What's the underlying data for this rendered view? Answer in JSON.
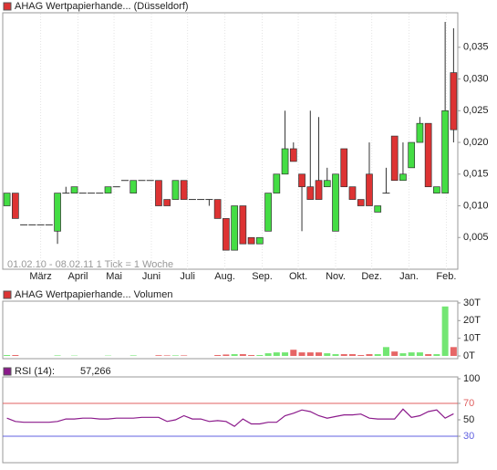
{
  "chart_data": [
    {
      "type": "candlestick",
      "title": "AHAG Wertpapierhande... (Düsseldorf)",
      "subtitle": "01.02.10 - 08.02.11   1 Tick = 1 Woche",
      "x": [
        0,
        1,
        2,
        3,
        4,
        5,
        6,
        7,
        8,
        9,
        10,
        11,
        12,
        13,
        14,
        15,
        16,
        17,
        18,
        19,
        20,
        21,
        22,
        23,
        24,
        25,
        26,
        27,
        28,
        29,
        30,
        31,
        32,
        33,
        34,
        35,
        36,
        37,
        38,
        39,
        40,
        41,
        42,
        43,
        44,
        45,
        46,
        47,
        48,
        49,
        50,
        51,
        52,
        53
      ],
      "xlim": [
        -0.5,
        53.5
      ],
      "xticks": [
        {
          "value": 4,
          "label": "März"
        },
        {
          "value": 8.43,
          "label": "April"
        },
        {
          "value": 12.71,
          "label": "Mai"
        },
        {
          "value": 17.14,
          "label": "Juni"
        },
        {
          "value": 21.43,
          "label": "Juli"
        },
        {
          "value": 25.86,
          "label": "Aug."
        },
        {
          "value": 30.29,
          "label": "Sep."
        },
        {
          "value": 34.57,
          "label": "Okt."
        },
        {
          "value": 39,
          "label": "Nov."
        },
        {
          "value": 43.29,
          "label": "Dez."
        },
        {
          "value": 47.71,
          "label": "Jan."
        },
        {
          "value": 52.14,
          "label": "Feb."
        }
      ],
      "open": [
        0.01,
        0.012,
        0.007,
        0.007,
        0.007,
        0.007,
        0.006,
        0.012,
        0.012,
        0.012,
        0.012,
        0.012,
        0.012,
        0.013,
        0.014,
        0.012,
        0.014,
        0.014,
        0.014,
        0.011,
        0.011,
        0.014,
        0.011,
        0.011,
        0.011,
        0.011,
        0.008,
        0.003,
        0.01,
        0.005,
        0.004,
        0.006,
        0.012,
        0.015,
        0.019,
        0.015,
        0.013,
        0.014,
        0.013,
        0.006,
        0.019,
        0.013,
        0.011,
        0.015,
        0.009,
        0.012,
        0.021,
        0.014,
        0.016,
        0.02,
        0.023,
        0.012,
        0.012,
        0.031
      ],
      "high": [
        0.012,
        0.012,
        0.007,
        0.007,
        0.007,
        0.007,
        0.012,
        0.013,
        0.013,
        0.012,
        0.012,
        0.012,
        0.013,
        0.013,
        0.014,
        0.014,
        0.014,
        0.014,
        0.014,
        0.011,
        0.014,
        0.014,
        0.011,
        0.011,
        0.011,
        0.011,
        0.008,
        0.01,
        0.01,
        0.005,
        0.005,
        0.012,
        0.015,
        0.025,
        0.02,
        0.015,
        0.025,
        0.024,
        0.016,
        0.015,
        0.019,
        0.013,
        0.011,
        0.02,
        0.01,
        0.016,
        0.021,
        0.02,
        0.02,
        0.024,
        0.023,
        0.013,
        0.039,
        0.038
      ],
      "low": [
        0.01,
        0.008,
        0.007,
        0.007,
        0.007,
        0.007,
        0.004,
        0.012,
        0.012,
        0.012,
        0.012,
        0.012,
        0.012,
        0.013,
        0.014,
        0.012,
        0.014,
        0.014,
        0.01,
        0.01,
        0.011,
        0.011,
        0.011,
        0.011,
        0.01,
        0.008,
        0.003,
        0.003,
        0.004,
        0.004,
        0.004,
        0.006,
        0.012,
        0.015,
        0.017,
        0.006,
        0.011,
        0.011,
        0.013,
        0.006,
        0.013,
        0.011,
        0.01,
        0.01,
        0.009,
        0.012,
        0.014,
        0.014,
        0.016,
        0.02,
        0.013,
        0.012,
        0.012,
        0.02
      ],
      "close": [
        0.012,
        0.008,
        0.007,
        0.007,
        0.007,
        0.007,
        0.012,
        0.012,
        0.013,
        0.012,
        0.012,
        0.012,
        0.013,
        0.013,
        0.014,
        0.014,
        0.014,
        0.014,
        0.01,
        0.01,
        0.014,
        0.011,
        0.011,
        0.011,
        0.011,
        0.008,
        0.003,
        0.01,
        0.004,
        0.004,
        0.005,
        0.012,
        0.015,
        0.019,
        0.017,
        0.013,
        0.011,
        0.011,
        0.014,
        0.015,
        0.013,
        0.011,
        0.01,
        0.01,
        0.01,
        0.012,
        0.014,
        0.015,
        0.02,
        0.023,
        0.013,
        0.013,
        0.025,
        0.022
      ],
      "up_color": "#44dd44",
      "down_color": "#dd3333",
      "ylim": [
        0,
        0.0403
      ],
      "yticks": [
        {
          "value": 0.005,
          "label": "0,005"
        },
        {
          "value": 0.01,
          "label": "0,010"
        },
        {
          "value": 0.015,
          "label": "0,015"
        },
        {
          "value": 0.02,
          "label": "0,020"
        },
        {
          "value": 0.025,
          "label": "0,025"
        },
        {
          "value": 0.03,
          "label": "0,030"
        },
        {
          "value": 0.035,
          "label": "0,035"
        }
      ],
      "grid": true
    },
    {
      "type": "bar",
      "title": "AHAG Wertpapierhande... Volumen",
      "values": [
        0.5,
        0.5,
        0,
        0,
        0,
        0,
        0.3,
        0,
        0.2,
        0,
        0,
        0,
        0.2,
        0,
        0,
        0.3,
        0,
        0,
        0.4,
        0.3,
        0.3,
        0.3,
        0,
        0,
        0,
        0.5,
        0.8,
        1,
        1,
        0.5,
        0.5,
        1.5,
        2,
        2,
        3.5,
        2,
        2,
        2,
        1.5,
        1,
        1,
        1,
        0.5,
        1,
        1,
        5,
        2.5,
        1.5,
        2,
        2,
        1,
        1,
        28,
        5
      ],
      "ylim": [
        0,
        31
      ],
      "yticks": [
        {
          "value": 0,
          "label": "0T"
        },
        {
          "value": 10,
          "label": "10T"
        },
        {
          "value": 20,
          "label": "20T"
        },
        {
          "value": 30,
          "label": "30T"
        }
      ]
    },
    {
      "type": "line",
      "title": "RSI (14):",
      "last_label": "57,266",
      "values": [
        52,
        48,
        47,
        47,
        47,
        47,
        48,
        51,
        51,
        52,
        52,
        51,
        51,
        52,
        52,
        52,
        53,
        53,
        53,
        48,
        50,
        55,
        51,
        51,
        48,
        49,
        48,
        42,
        51,
        45,
        45,
        47,
        47,
        55,
        58,
        62,
        60,
        55,
        52,
        54,
        56,
        56,
        57,
        52,
        51,
        51,
        51,
        63,
        53,
        55,
        60,
        62,
        52,
        57.266
      ],
      "color": "#8b1a8b",
      "ylim": [
        0,
        100
      ],
      "yticks": [
        30,
        50,
        70,
        100
      ],
      "bands": [
        {
          "value": 70,
          "color": "#e06060"
        },
        {
          "value": 30,
          "color": "#6060e0"
        }
      ]
    }
  ]
}
